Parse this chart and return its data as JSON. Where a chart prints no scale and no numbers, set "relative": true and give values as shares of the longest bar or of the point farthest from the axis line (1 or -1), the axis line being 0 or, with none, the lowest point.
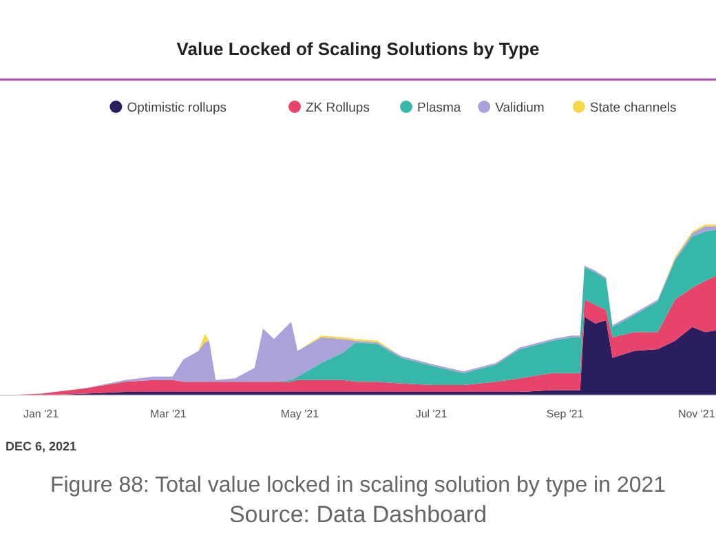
{
  "chart_data": {
    "type": "area",
    "stacked": true,
    "relative": true,
    "title": "Value Locked of Scaling Solutions by Type",
    "legend": "top",
    "annotations": [
      "DEC 6, 2021",
      "Figure 88: Total value locked in scaling solution by type in 2021",
      "Source: Data Dashboard"
    ],
    "x": [
      "2020-12-13",
      "2021-01-01",
      "2021-01-21",
      "2021-02-09",
      "2021-02-22",
      "2021-03-03",
      "2021-03-08",
      "2021-03-15",
      "2021-03-18",
      "2021-03-20",
      "2021-03-23",
      "2021-04-01",
      "2021-04-10",
      "2021-04-14",
      "2021-04-19",
      "2021-04-27",
      "2021-04-30",
      "2021-05-11",
      "2021-05-21",
      "2021-05-27",
      "2021-06-06",
      "2021-06-17",
      "2021-07-02",
      "2021-07-16",
      "2021-07-31",
      "2021-08-11",
      "2021-08-26",
      "2021-09-04",
      "2021-09-08",
      "2021-09-10",
      "2021-09-15",
      "2021-09-20",
      "2021-09-23",
      "2021-10-03",
      "2021-10-14",
      "2021-10-22",
      "2021-10-30",
      "2021-11-05",
      "2021-11-10"
    ],
    "xlim": [
      "2020-12-13",
      "2021-11-10"
    ],
    "xticks": [
      {
        "value": "2021-01-01",
        "label": "Jan '21"
      },
      {
        "value": "2021-03-01",
        "label": "Mar '21"
      },
      {
        "value": "2021-05-01",
        "label": "May '21"
      },
      {
        "value": "2021-07-01",
        "label": "Jul '21"
      },
      {
        "value": "2021-09-01",
        "label": "Sep '21"
      },
      {
        "value": "2021-11-01",
        "label": "Nov '21"
      }
    ],
    "series": [
      {
        "name": "Optimistic rollups",
        "color": "#2b1e5e",
        "values": [
          0,
          0,
          0.01,
          0.02,
          0.02,
          0.02,
          0.02,
          0.02,
          0.02,
          0.02,
          0.02,
          0.02,
          0.02,
          0.02,
          0.02,
          0.02,
          0.02,
          0.02,
          0.02,
          0.02,
          0.02,
          0.02,
          0.02,
          0.02,
          0.02,
          0.02,
          0.03,
          0.03,
          0.03,
          0.46,
          0.42,
          0.44,
          0.22,
          0.26,
          0.27,
          0.32,
          0.4,
          0.37,
          0.38
        ]
      },
      {
        "name": "ZK Rollups",
        "color": "#e8436a",
        "values": [
          0,
          0.01,
          0.03,
          0.06,
          0.07,
          0.07,
          0.06,
          0.06,
          0.06,
          0.06,
          0.06,
          0.06,
          0.06,
          0.06,
          0.06,
          0.06,
          0.07,
          0.07,
          0.07,
          0.06,
          0.06,
          0.05,
          0.04,
          0.04,
          0.06,
          0.08,
          0.1,
          0.1,
          0.1,
          0.1,
          0.11,
          0.06,
          0.12,
          0.11,
          0.1,
          0.24,
          0.23,
          0.3,
          0.32
        ]
      },
      {
        "name": "Plasma",
        "color": "#36b7a8",
        "values": [
          0,
          0,
          0,
          0,
          0,
          0,
          0,
          0,
          0,
          0,
          0,
          0,
          0,
          0,
          0,
          0.01,
          0.02,
          0.1,
          0.16,
          0.23,
          0.22,
          0.15,
          0.11,
          0.07,
          0.1,
          0.17,
          0.19,
          0.21,
          0.21,
          0.19,
          0.19,
          0.18,
          0.06,
          0.1,
          0.18,
          0.23,
          0.3,
          0.29,
          0.27
        ]
      },
      {
        "name": "Validium",
        "color": "#a9a3d9",
        "values": [
          0,
          0,
          0,
          0.01,
          0.02,
          0.02,
          0.13,
          0.18,
          0.23,
          0.24,
          0.01,
          0.02,
          0.08,
          0.31,
          0.25,
          0.34,
          0.15,
          0.15,
          0.08,
          0.01,
          0.01,
          0.01,
          0.01,
          0.01,
          0.01,
          0.01,
          0.01,
          0.01,
          0.01,
          0.01,
          0.01,
          0.01,
          0.01,
          0.01,
          0.01,
          0.01,
          0.02,
          0.03,
          0.02
        ]
      },
      {
        "name": "State channels",
        "color": "#f5d94a",
        "values": [
          0,
          0,
          0,
          0,
          0,
          0,
          0,
          0,
          0.05,
          0,
          0,
          0,
          0,
          0,
          0,
          0,
          0,
          0.01,
          0.01,
          0.01,
          0.01,
          0,
          0,
          0,
          0,
          0,
          0,
          0,
          0,
          0,
          0,
          0,
          0,
          0,
          0,
          0.01,
          0.01,
          0.01,
          0.01
        ]
      }
    ]
  }
}
